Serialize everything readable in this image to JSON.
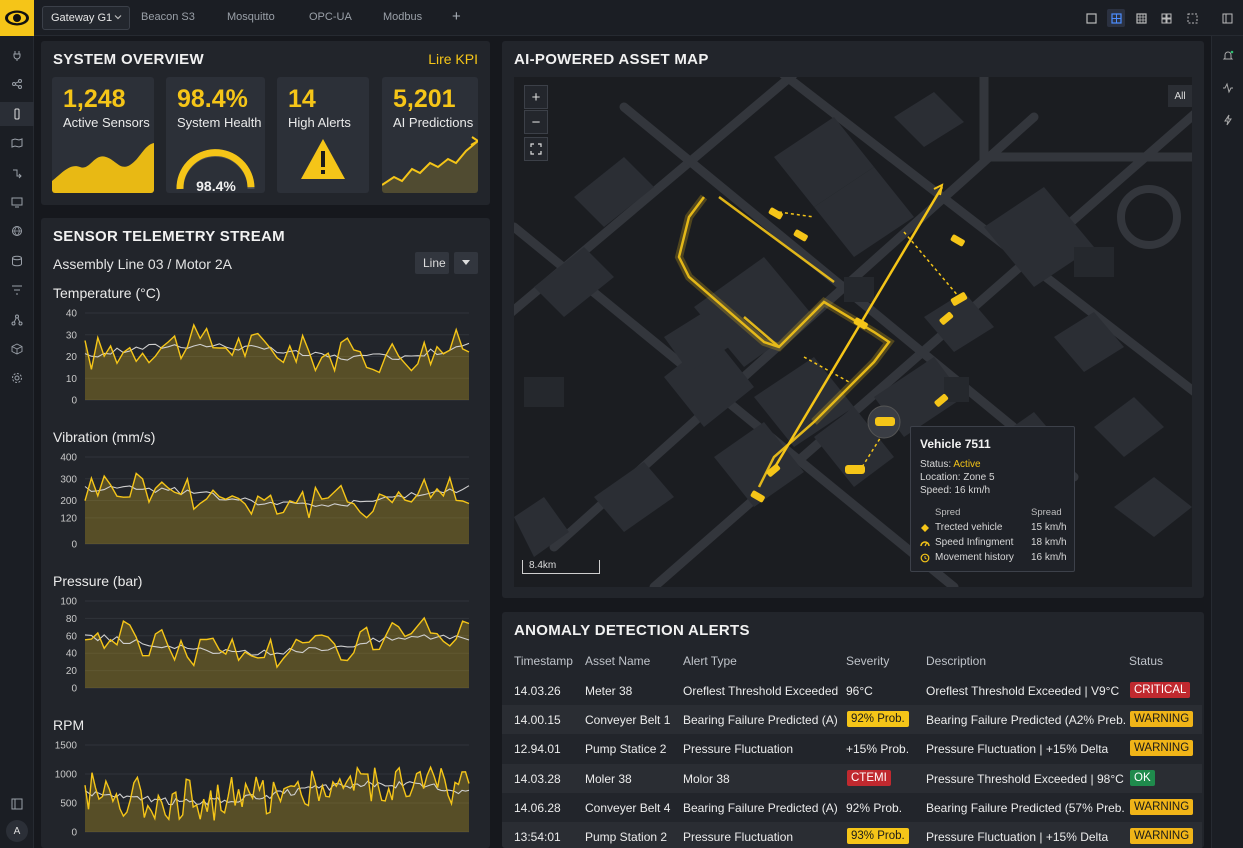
{
  "topbar": {
    "gateway_label": "Gateway G1",
    "tabs": [
      "Beacon S3",
      "Mosquitto",
      "OPC-UA",
      "Modbus"
    ],
    "add_tab": "+"
  },
  "sidebar": {
    "icons": [
      "plug-icon",
      "share-icon",
      "device-icon",
      "map-icon",
      "flow-icon",
      "monitor-icon",
      "globe-icon",
      "storage-icon",
      "filter-icon",
      "nodes-icon",
      "package-icon",
      "settings-icon"
    ],
    "avatar_initial": "A"
  },
  "overview": {
    "title": "SYSTEM OVERVIEW",
    "link": "Lire KPI",
    "kpis": [
      {
        "value": "1,248",
        "label": "Active Sensors"
      },
      {
        "value": "98.4%",
        "label": "System Health",
        "gauge_text": "98.4%",
        "gauge_fraction": 0.984
      },
      {
        "value": "14",
        "label": "High Alerts"
      },
      {
        "value": "5,201",
        "label": "AI Predictions"
      }
    ]
  },
  "telemetry": {
    "title": "SENSOR TELEMETRY STREAM",
    "subtitle": "Assembly Line 03 / Motor 2A",
    "chart_type_select": "Line",
    "charts": [
      {
        "label": "Temperature (°C)",
        "ticks": [
          "40",
          "30",
          "20",
          "10",
          "0"
        ],
        "yrange": [
          0,
          40
        ],
        "ticks_num": [
          40,
          30,
          20,
          10,
          0
        ]
      },
      {
        "label": "Vibration (mm/s)",
        "ticks": [
          "400",
          "300",
          "200",
          "120",
          "0"
        ],
        "yrange": [
          0,
          400
        ],
        "ticks_num": [
          400,
          300,
          200,
          120,
          0
        ]
      },
      {
        "label": "Pressure (bar)",
        "ticks": [
          "100",
          "80",
          "60",
          "40",
          "20",
          "0"
        ],
        "yrange": [
          0,
          100
        ],
        "ticks_num": [
          100,
          80,
          60,
          40,
          20,
          0
        ]
      },
      {
        "label": "RPM",
        "ticks": [
          "1500",
          "1000",
          "500",
          "0"
        ],
        "yrange": [
          0,
          1500
        ],
        "ticks_num": [
          1500,
          1000,
          500,
          0
        ]
      }
    ]
  },
  "map": {
    "title": "AI-POWERED ASSET MAP",
    "zoom_in": "+",
    "zoom_out": "−",
    "filter_label": "All",
    "scale_label": "8.4km",
    "popup": {
      "title": "Vehicle 7511",
      "status_key": "Status:",
      "status_value": "Active",
      "location_key": "Location:",
      "location_value": "Zone 5",
      "speed_key": "Speed:",
      "speed_value": "16 km/h",
      "col1_header": "Spred",
      "col2_header": "Spread",
      "rows": [
        {
          "label": "Trected vehicle",
          "value": "15 km/h"
        },
        {
          "label": "Speed Infingment",
          "value": "18 km/h"
        },
        {
          "label": "Movement history",
          "value": "16 km/h"
        }
      ]
    }
  },
  "alerts": {
    "title": "ANOMALY DETECTION ALERTS",
    "columns": [
      "Timestamp",
      "Asset Name",
      "Alert Type",
      "Severity",
      "Description",
      "Status"
    ],
    "rows": [
      {
        "time": "14.03.26",
        "asset": "Meter 38",
        "type": "Oreflest Threshold Exceeded",
        "severity": "96°C",
        "sev_style": "plain",
        "desc": "Oreflest Threshold Exceeded | V9°C",
        "status": "CRITICAL",
        "status_style": "critical"
      },
      {
        "time": "14.00.15",
        "asset": "Conveyer Belt 1",
        "type": "Bearing Failure Predicted (A)",
        "severity": "92% Prob.",
        "sev_style": "yellow",
        "desc": "Bearing Failure Predicted (A2% Preb.",
        "status": "WARNING",
        "status_style": "warning"
      },
      {
        "time": "12.94.01",
        "asset": "Pump Statice 2",
        "type": "Pressure Fluctuation",
        "severity": "+15% Prob.",
        "sev_style": "plain",
        "desc": "Pressure Fluctuation | +15% Delta",
        "status": "WARNING",
        "status_style": "warning"
      },
      {
        "time": "14.03.28",
        "asset": "Moler 38",
        "type": "Molor 38",
        "severity": "CTEMI",
        "sev_style": "red",
        "desc": "Pressure Threshold Exceeded | 98°C",
        "status": "OK",
        "status_style": "ok"
      },
      {
        "time": "14.06.28",
        "asset": "Conveyer Belt 4",
        "type": "Bearing Failure Predicted (A)",
        "severity": "92% Prob.",
        "sev_style": "plain",
        "desc": "Bearing Failure Predicted (57% Preb.",
        "status": "WARNING",
        "status_style": "warning"
      },
      {
        "time": "13:54:01",
        "asset": "Pump Station 2",
        "type": "Pressure Fluctuation",
        "severity": "93% Prob.",
        "sev_style": "yellow",
        "desc": "Pressure Fluctuation | +15% Delta",
        "status": "WARNING",
        "status_style": "warning"
      }
    ]
  },
  "colors": {
    "accent": "#f5c518",
    "critical": "#c0292f",
    "ok": "#1f8a4c",
    "panel": "#22252b"
  }
}
